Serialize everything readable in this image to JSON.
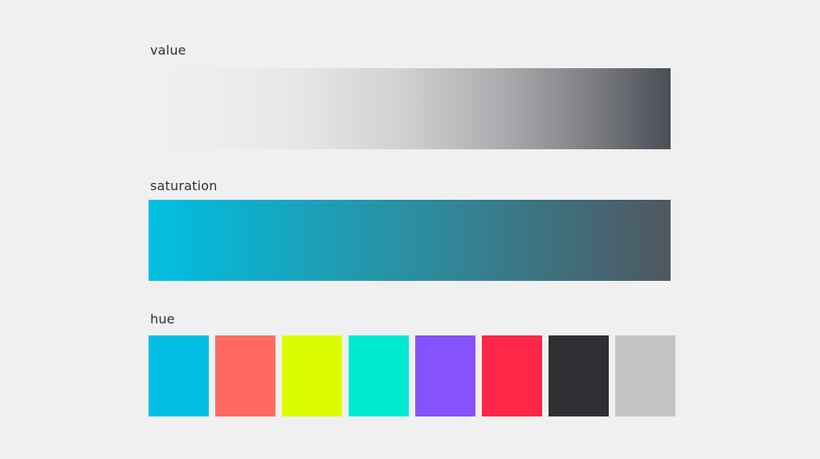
{
  "labels": {
    "value": "value",
    "saturation": "saturation",
    "hue": "hue"
  },
  "value_scale": {
    "start_color": "#eff0ef",
    "end_color": "#4a4e55"
  },
  "saturation_scale": {
    "start_color": "#00c0e2",
    "end_color": "#4f5761"
  },
  "hue_swatches": [
    {
      "name": "cyan",
      "color": "#00bfe3"
    },
    {
      "name": "coral",
      "color": "#ff6961"
    },
    {
      "name": "lime",
      "color": "#dbfd00"
    },
    {
      "name": "turquoise",
      "color": "#00e9d1"
    },
    {
      "name": "violet",
      "color": "#8652fa"
    },
    {
      "name": "red",
      "color": "#ff2648"
    },
    {
      "name": "charcoal",
      "color": "#2f3033"
    },
    {
      "name": "light-gray",
      "color": "#c2c4c6"
    }
  ]
}
